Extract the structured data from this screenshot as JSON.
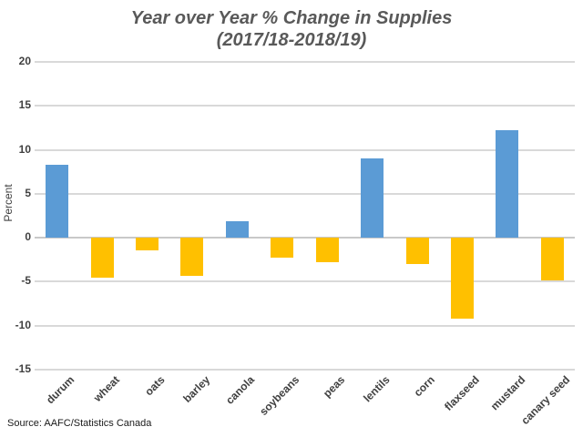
{
  "chart_data": {
    "type": "bar",
    "title_line1": "Year over Year % Change in Supplies",
    "title_line2": "(2017/18-2018/19)",
    "ylabel": "Percent",
    "categories": [
      "durum",
      "wheat",
      "oats",
      "barley",
      "canola",
      "soybeans",
      "peas",
      "lentils",
      "corn",
      "flaxseed",
      "mustard",
      "canary seed"
    ],
    "values": [
      8.3,
      -4.6,
      -1.5,
      -4.4,
      1.9,
      -2.3,
      -2.8,
      9.0,
      -3.0,
      -9.2,
      12.2,
      -4.9
    ],
    "ylim": [
      -15,
      20
    ],
    "yticks": [
      20,
      15,
      10,
      5,
      0,
      -5,
      -10,
      -15
    ],
    "grid": true,
    "legend": false,
    "colors": {
      "positive": "#5B9BD5",
      "negative": "#FFC000",
      "gridline": "#D9D9D9",
      "title": "#595959",
      "tick_text": "#404040"
    }
  },
  "source": "Source: AAFC/Statistics Canada"
}
